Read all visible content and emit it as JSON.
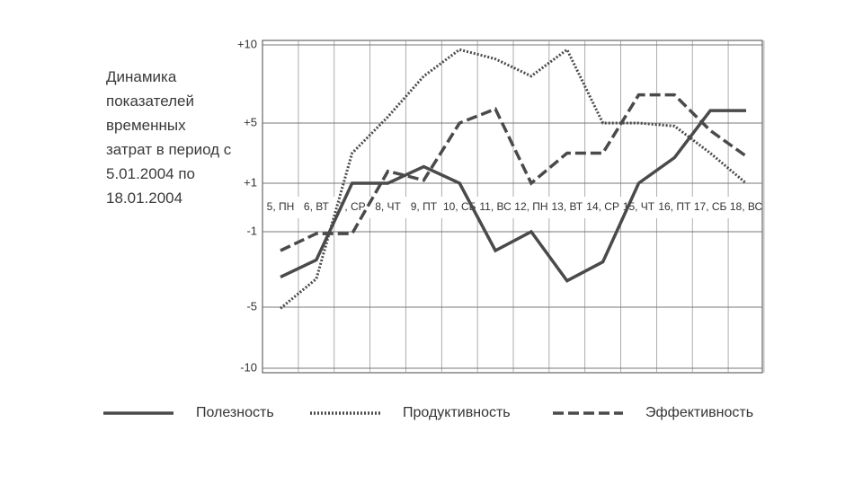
{
  "chart_data": {
    "type": "line",
    "title": "Динамика показателей временных затрат в период с 5.01.2004 по 18.01.2004",
    "categories": [
      "5, ПН",
      "6, ВТ",
      "7, СР",
      "8, ЧТ",
      "9, ПТ",
      "10, СБ",
      "11, ВС",
      "12, ПН",
      "13, ВТ",
      "14, СР",
      "15, ЧТ",
      "16, ПТ",
      "17, СБ",
      "18, ВС"
    ],
    "series": [
      {
        "name": "Полезность",
        "color": "#4a4a4a",
        "style": "solid",
        "values": [
          -3.4,
          -2.5,
          1,
          1,
          2.1,
          1,
          -2,
          -1,
          -3.6,
          -2.6,
          1,
          2.7,
          5.8,
          5.8
        ]
      },
      {
        "name": "Продуктивность",
        "color": "#4a4a4a",
        "style": "dotted",
        "values": [
          -5.1,
          -3.5,
          3,
          5.4,
          8,
          9.7,
          9.1,
          8,
          9.7,
          5,
          5,
          4.8,
          3,
          1
        ]
      },
      {
        "name": "Эффективность",
        "color": "#4a4a4a",
        "style": "dashed",
        "values": [
          -2,
          -1.1,
          -1.1,
          1.8,
          1.2,
          5,
          5.9,
          1,
          3,
          3,
          6.8,
          6.8,
          4.5,
          2.8
        ]
      }
    ],
    "ylim": [
      -10,
      10
    ],
    "yticks": [
      {
        "value": 10,
        "label": "+10"
      },
      {
        "value": 5,
        "label": "+5"
      },
      {
        "value": 1,
        "label": "+1"
      },
      -1,
      -5,
      -10
    ],
    "grid": true,
    "legend": "bottom"
  }
}
